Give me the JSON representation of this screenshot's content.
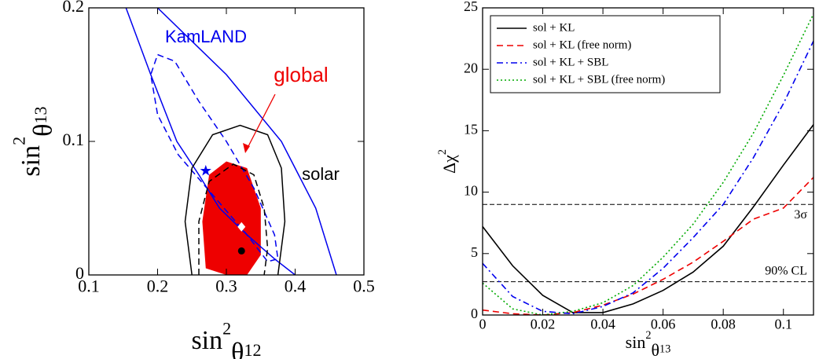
{
  "chart_data": [
    {
      "type": "contour",
      "xlabel": {
        "text": "sin",
        "sup": "2",
        "greek": "θ",
        "sub": "12"
      },
      "ylabel": {
        "text": "sin",
        "sup": "2",
        "greek": "θ",
        "sub": "13"
      },
      "xlim": [
        0.1,
        0.5
      ],
      "ylim": [
        0,
        0.2
      ],
      "xticks": [
        0.1,
        0.2,
        0.3,
        0.4,
        0.5
      ],
      "yticks": [
        0,
        0.1,
        0.2
      ],
      "annotations": [
        {
          "text": "KamLAND",
          "color": "#0000ee"
        },
        {
          "text": "global",
          "color": "#ee0000"
        },
        {
          "text": "solar",
          "color": "#000000"
        }
      ],
      "series": [
        {
          "kind": "area",
          "color": "#ee0000",
          "x": [
            0.27,
            0.265,
            0.275,
            0.3,
            0.33,
            0.35,
            0.35,
            0.33,
            0.3,
            0.27
          ],
          "y": [
            0.005,
            0.04,
            0.075,
            0.085,
            0.08,
            0.05,
            0.015,
            0,
            0,
            0.005
          ]
        },
        {
          "kind": "line",
          "color": "#0000ee",
          "dash": "solid",
          "x": [
            0.46,
            0.43,
            0.38,
            0.3,
            0.2,
            null,
            0.154,
            0.19,
            0.228,
            0.26,
            0.29,
            0.33,
            0.37,
            0.4
          ],
          "y": [
            0,
            0.05,
            0.1,
            0.15,
            0.2,
            null,
            0.2,
            0.15,
            0.1,
            0.075,
            0.05,
            0.03,
            0.012,
            0
          ]
        },
        {
          "kind": "line",
          "color": "#0000ee",
          "dash": "dashed",
          "x": [
            0.2,
            0.225,
            0.26,
            0.3,
            0.34,
            0.37,
            0.375,
            0.36,
            0.33,
            0.28,
            0.23,
            0.2,
            0.19,
            0.2
          ],
          "y": [
            0.165,
            0.16,
            0.13,
            0.1,
            0.065,
            0.03,
            0.012,
            0.01,
            0.03,
            0.06,
            0.09,
            0.12,
            0.15,
            0.165
          ]
        },
        {
          "kind": "line",
          "color": "#000000",
          "dash": "solid",
          "x": [
            0.25,
            0.24,
            0.25,
            0.28,
            0.32,
            0.36,
            0.38,
            0.385,
            0.375
          ],
          "y": [
            0,
            0.04,
            0.08,
            0.105,
            0.112,
            0.105,
            0.08,
            0.04,
            0
          ]
        },
        {
          "kind": "line",
          "color": "#000000",
          "dash": "dashed",
          "x": [
            0.26,
            0.26,
            0.275,
            0.31,
            0.34,
            0.355,
            0.36,
            0.355
          ],
          "y": [
            0,
            0.04,
            0.07,
            0.083,
            0.075,
            0.05,
            0.02,
            0
          ]
        },
        {
          "kind": "point",
          "marker": "star",
          "color": "#0000ee",
          "x": [
            0.27
          ],
          "y": [
            0.078
          ]
        },
        {
          "kind": "point",
          "marker": "diamond",
          "color": "#ffffff",
          "x": [
            0.322
          ],
          "y": [
            0.036
          ]
        },
        {
          "kind": "point",
          "marker": "circle",
          "color": "#000000",
          "x": [
            0.322
          ],
          "y": [
            0.018
          ]
        }
      ]
    },
    {
      "type": "line",
      "xlabel": {
        "text": "sin",
        "sup": "2",
        "greek": "θ",
        "sub": "13"
      },
      "ylabel": {
        "text": "Δχ",
        "sup": "2"
      },
      "xlim": [
        0,
        0.11
      ],
      "ylim": [
        0,
        25
      ],
      "xticks": [
        0,
        0.02,
        0.04,
        0.06,
        0.08,
        0.1
      ],
      "yticks": [
        0,
        5,
        10,
        15,
        20,
        25
      ],
      "legend": "upper left",
      "hlines": [
        {
          "value": 9,
          "label": "3σ"
        },
        {
          "value": 2.71,
          "label": "90% CL"
        }
      ],
      "x": [
        0,
        0.01,
        0.02,
        0.03,
        0.04,
        0.05,
        0.06,
        0.07,
        0.08,
        0.09,
        0.1,
        0.11
      ],
      "series": [
        {
          "name": "sol + KL",
          "color": "#000000",
          "dash": "solid",
          "values": [
            7.2,
            4.0,
            1.6,
            0.2,
            0.2,
            0.9,
            2.0,
            3.5,
            5.6,
            8.8,
            12.2,
            15.5
          ]
        },
        {
          "name": "sol + KL (free norm)",
          "color": "#ee0000",
          "dash": "dashed",
          "values": [
            0.4,
            0.1,
            0.0,
            0.2,
            0.8,
            1.7,
            2.9,
            4.3,
            6.0,
            7.8,
            8.7,
            11.2
          ]
        },
        {
          "name": "sol + KL + SBL",
          "color": "#0000ee",
          "dash": "dashdot",
          "values": [
            4.2,
            1.5,
            0.3,
            0.1,
            0.7,
            1.8,
            3.8,
            6.3,
            9.0,
            12.8,
            17.2,
            22.3
          ]
        },
        {
          "name": "sol + KL + SBL (free norm)",
          "color": "#00aa00",
          "dash": "dotted",
          "values": [
            2.6,
            0.5,
            0.0,
            0.3,
            1.0,
            2.4,
            4.7,
            7.4,
            10.8,
            14.8,
            19.5,
            24.5
          ]
        }
      ]
    }
  ]
}
